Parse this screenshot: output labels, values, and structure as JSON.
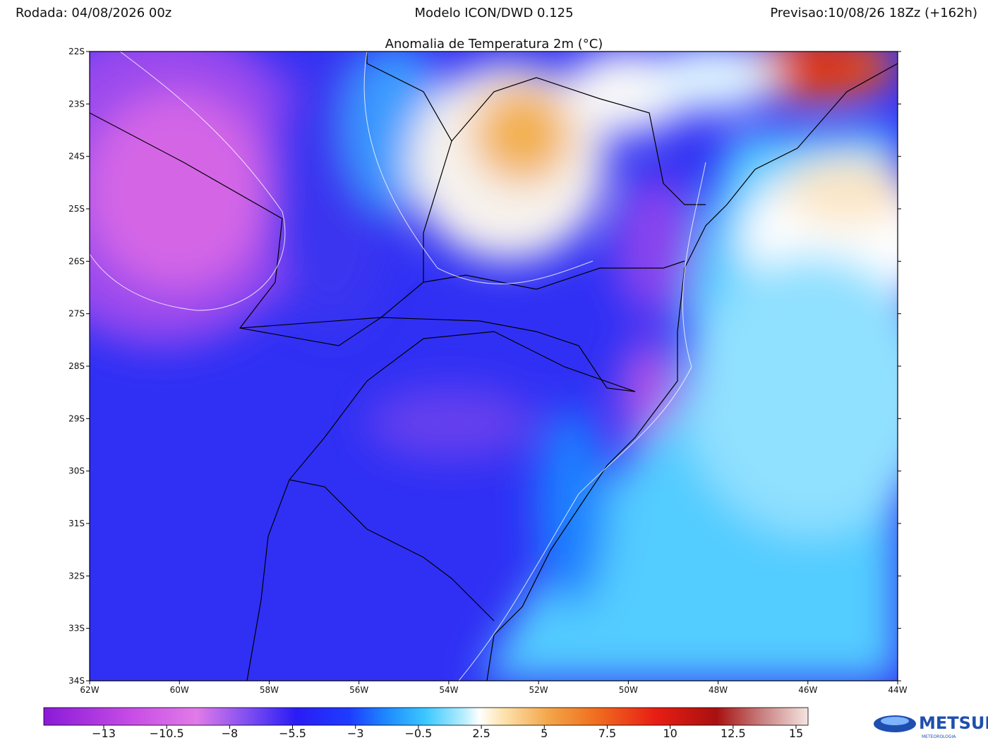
{
  "header": {
    "run": "Rodada: 04/08/2026 00z",
    "model": "Modelo ICON/DWD 0.125",
    "forecast": "Previsao:10/08/26 18Zz (+162h)"
  },
  "map": {
    "title": "Anomalia de Temperatura 2m (°C)",
    "lat_labels": [
      "22S",
      "23S",
      "24S",
      "25S",
      "26S",
      "27S",
      "28S",
      "29S",
      "30S",
      "31S",
      "32S",
      "33S",
      "34S"
    ],
    "lon_labels": [
      "62W",
      "60W",
      "58W",
      "56W",
      "54W",
      "52W",
      "50W",
      "48W",
      "46W",
      "44W"
    ]
  },
  "colorbar": {
    "ticks": [
      {
        "value": -13,
        "label": "−13"
      },
      {
        "value": -10.5,
        "label": "−10.5"
      },
      {
        "value": -8,
        "label": "−8"
      },
      {
        "value": -5.5,
        "label": "−5.5"
      },
      {
        "value": -3,
        "label": "−3"
      },
      {
        "value": -0.5,
        "label": "−0.5"
      },
      2.5,
      5,
      7.5,
      10,
      12.5,
      15
    ]
  },
  "logo": {
    "name": "METSUL",
    "subtitle": "METEOROLOGIA"
  }
}
